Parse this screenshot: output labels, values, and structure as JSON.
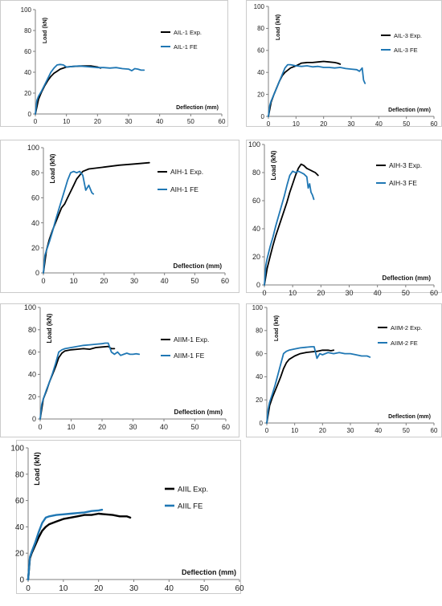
{
  "colors": {
    "exp": "#000000",
    "fe": "#1f77b4",
    "axis": "#7f7f7f",
    "border": "#bfbfbf"
  },
  "chart_data": [
    {
      "type": "line",
      "xlabel": "Deflection (mm)",
      "ylabel": "Load (kN)",
      "xlim": [
        0,
        60
      ],
      "ylim": [
        0,
        100
      ],
      "xticks": [
        "0",
        "10",
        "20",
        "30",
        "40",
        "50",
        "60"
      ],
      "yticks": [
        "0",
        "20",
        "40",
        "60",
        "80",
        "100"
      ],
      "grid": false,
      "legend_position": "top-right",
      "series": [
        {
          "name": "AIL-1 Exp.",
          "color_key": "exp",
          "x": [
            0,
            1,
            2,
            3,
            4,
            5,
            6,
            7,
            8,
            10,
            12,
            15,
            18,
            20,
            21
          ],
          "y": [
            0,
            14,
            21,
            27,
            32,
            36,
            39,
            41,
            43,
            45,
            45.5,
            46,
            46,
            45,
            44
          ]
        },
        {
          "name": "AIL-1 FE",
          "color_key": "fe",
          "x": [
            0,
            0.5,
            1,
            2,
            3,
            4,
            5,
            6,
            7,
            8,
            9,
            10,
            12,
            14,
            16,
            18,
            20,
            22,
            24,
            26,
            28,
            30,
            31,
            32,
            33,
            34,
            35
          ],
          "y": [
            0,
            13,
            17,
            22,
            28,
            34,
            40,
            44,
            47,
            47.5,
            47,
            45,
            45.5,
            46,
            45.5,
            45,
            44.5,
            44.5,
            44,
            44.5,
            43.5,
            43,
            41.5,
            43.5,
            43,
            42,
            42
          ]
        }
      ]
    },
    {
      "type": "line",
      "xlabel": "Deflection (mm)",
      "ylabel": "Load (kN)",
      "xlim": [
        0,
        60
      ],
      "ylim": [
        0,
        100
      ],
      "xticks": [
        "0",
        "10",
        "20",
        "30",
        "40",
        "50",
        "60"
      ],
      "yticks": [
        "0",
        "20",
        "40",
        "60",
        "80",
        "100"
      ],
      "grid": false,
      "legend_position": "top-right",
      "series": [
        {
          "name": "AIL-3 Exp.",
          "color_key": "exp",
          "x": [
            0,
            1,
            2,
            3,
            4,
            5,
            6,
            8,
            10,
            12,
            14,
            16,
            18,
            20,
            22,
            24,
            25,
            26
          ],
          "y": [
            0,
            13,
            20,
            26,
            32,
            37,
            40,
            44,
            46,
            48.5,
            49,
            49,
            49.5,
            50,
            49.5,
            49,
            48.5,
            47.5
          ]
        },
        {
          "name": "AIL-3 FE",
          "color_key": "fe",
          "x": [
            0,
            0.5,
            1,
            2,
            3,
            4,
            5,
            6,
            7,
            8,
            10,
            12,
            14,
            16,
            18,
            20,
            22,
            24,
            26,
            28,
            30,
            32,
            33,
            34,
            34.5,
            35
          ],
          "y": [
            0,
            10,
            14,
            20,
            26,
            32,
            38,
            44,
            47,
            47,
            46,
            45.5,
            46,
            45,
            45.5,
            44.5,
            44.5,
            44,
            44.5,
            43.5,
            43,
            42.5,
            41,
            44,
            33,
            30
          ]
        }
      ]
    },
    {
      "type": "line",
      "xlabel": "Deflection (mm)",
      "ylabel": "Load (kN)",
      "xlim": [
        0,
        60
      ],
      "ylim": [
        0,
        100
      ],
      "xticks": [
        "0",
        "10",
        "20",
        "30",
        "40",
        "50",
        "60"
      ],
      "yticks": [
        "0",
        "20",
        "40",
        "60",
        "80",
        "100"
      ],
      "grid": false,
      "legend_position": "right",
      "series": [
        {
          "name": "AIH-1 Exp.",
          "color_key": "exp",
          "x": [
            0,
            1,
            2,
            3,
            4,
            5,
            6,
            7,
            8,
            9,
            10,
            11,
            12,
            13,
            14,
            15,
            20,
            25,
            30,
            35
          ],
          "y": [
            0,
            18,
            27,
            34,
            40,
            46,
            52,
            55,
            60,
            65,
            70,
            75,
            78,
            81,
            82,
            83,
            84.5,
            86,
            87,
            88
          ]
        },
        {
          "name": "AIH-1 FE",
          "color_key": "fe",
          "x": [
            0,
            0.5,
            1,
            2,
            3,
            4,
            5,
            6,
            7,
            8,
            9,
            10,
            11,
            12,
            13,
            14,
            15,
            15.5,
            16,
            16.5
          ],
          "y": [
            0,
            14,
            18,
            25,
            33,
            42,
            50,
            58,
            66,
            74,
            80,
            81,
            80,
            81,
            78,
            66,
            70,
            67,
            64,
            63
          ]
        }
      ]
    },
    {
      "type": "line",
      "xlabel": "Deflection (mm)",
      "ylabel": "Load (kN)",
      "xlim": [
        0,
        60
      ],
      "ylim": [
        0,
        100
      ],
      "xticks": [
        "0",
        "10",
        "20",
        "30",
        "40",
        "50",
        "60"
      ],
      "yticks": [
        "0",
        "20",
        "40",
        "60",
        "80",
        "100"
      ],
      "grid": false,
      "legend_position": "top-right",
      "series": [
        {
          "name": "AIH-3 Exp.",
          "color_key": "exp",
          "x": [
            0,
            1,
            2,
            3,
            4,
            5,
            6,
            7,
            8,
            9,
            10,
            11,
            12,
            13,
            14,
            15,
            16,
            17,
            18,
            19
          ],
          "y": [
            0,
            12,
            20,
            28,
            35,
            41,
            47,
            53,
            59,
            66,
            72,
            78,
            83,
            86,
            85,
            83,
            82,
            81,
            80,
            78
          ]
        },
        {
          "name": "AIH-3 FE",
          "color_key": "fe",
          "x": [
            0,
            0.5,
            1,
            2,
            3,
            4,
            5,
            6,
            7,
            8,
            9,
            10,
            11,
            12,
            13,
            14,
            15,
            15.5,
            16,
            16.5,
            17,
            17.5
          ],
          "y": [
            0,
            14,
            19,
            27,
            34,
            42,
            49,
            56,
            63,
            71,
            78,
            81,
            80,
            81,
            80,
            79,
            77,
            69,
            72,
            66,
            64,
            61
          ]
        }
      ]
    },
    {
      "type": "line",
      "xlabel": "Deflection (mm)",
      "ylabel": "Load (kN)",
      "xlim": [
        0,
        60
      ],
      "ylim": [
        0,
        100
      ],
      "xticks": [
        "0",
        "10",
        "20",
        "30",
        "40",
        "50",
        "60"
      ],
      "yticks": [
        "0",
        "20",
        "40",
        "60",
        "80",
        "100"
      ],
      "grid": false,
      "legend_position": "top-right",
      "series": [
        {
          "name": "AIIM-1 Exp.",
          "color_key": "exp",
          "x": [
            0,
            1,
            2,
            3,
            4,
            5,
            6,
            7,
            8,
            10,
            12,
            14,
            16,
            18,
            20,
            22,
            23,
            24
          ],
          "y": [
            0,
            18,
            25,
            33,
            40,
            47,
            55,
            59,
            61,
            62,
            62.5,
            63,
            62.5,
            64,
            64.5,
            65,
            63,
            63
          ]
        },
        {
          "name": "AIIM-1 FE",
          "color_key": "fe",
          "x": [
            0,
            0.5,
            1,
            2,
            3,
            4,
            5,
            6,
            7,
            8,
            10,
            12,
            14,
            16,
            18,
            20,
            21,
            22,
            23,
            24,
            25,
            26,
            27,
            28,
            29,
            30,
            31,
            32
          ],
          "y": [
            0,
            13,
            18,
            26,
            33,
            41,
            50,
            60,
            62,
            63,
            64,
            65,
            66,
            66.5,
            67,
            67.5,
            68,
            68,
            60,
            58,
            60,
            57,
            58,
            59,
            58,
            58,
            58.5,
            58
          ]
        }
      ]
    },
    {
      "type": "line",
      "xlabel": "Deflection (mm)",
      "ylabel": "Load (kN)",
      "xlim": [
        0,
        60
      ],
      "ylim": [
        0,
        100
      ],
      "xticks": [
        "0",
        "10",
        "20",
        "30",
        "40",
        "50",
        "60"
      ],
      "yticks": [
        "0",
        "20",
        "40",
        "60",
        "80",
        "100"
      ],
      "grid": false,
      "legend_position": "top-right",
      "series": [
        {
          "name": "AIIM-2 Exp.",
          "color_key": "exp",
          "x": [
            0,
            1,
            2,
            3,
            4,
            5,
            6,
            7,
            8,
            10,
            12,
            14,
            16,
            18,
            20,
            22,
            23,
            24
          ],
          "y": [
            0,
            15,
            22,
            28,
            34,
            40,
            47,
            52,
            55,
            58,
            60,
            61,
            61.5,
            62,
            63,
            63,
            62.5,
            63
          ]
        },
        {
          "name": "AIIM-2 FE",
          "color_key": "fe",
          "x": [
            0,
            0.5,
            1,
            2,
            3,
            4,
            5,
            6,
            7,
            8,
            10,
            12,
            14,
            16,
            17,
            18,
            19,
            20,
            22,
            24,
            26,
            28,
            30,
            32,
            34,
            36,
            37
          ],
          "y": [
            0,
            12,
            18,
            25,
            33,
            42,
            51,
            60,
            62,
            63,
            64,
            65,
            65.5,
            66,
            66,
            56,
            60,
            59,
            61,
            60,
            61,
            60,
            60,
            59,
            58,
            58,
            57
          ]
        }
      ]
    },
    {
      "type": "line",
      "xlabel": "Deflection (mm)",
      "ylabel": "Load (kN)",
      "xlim": [
        0,
        60
      ],
      "ylim": [
        0,
        100
      ],
      "xticks": [
        "0",
        "10",
        "20",
        "30",
        "40",
        "50",
        "60"
      ],
      "yticks": [
        "0",
        "20",
        "40",
        "60",
        "80",
        "100"
      ],
      "grid": false,
      "legend_position": "top-right",
      "series": [
        {
          "name": "AIIL Exp.",
          "color_key": "exp",
          "x": [
            0,
            0.5,
            1,
            2,
            3,
            4,
            5,
            6,
            8,
            10,
            12,
            14,
            16,
            18,
            20,
            22,
            24,
            26,
            28,
            29
          ],
          "y": [
            0,
            16,
            20,
            26,
            32,
            37,
            40,
            42,
            44,
            46,
            47,
            48,
            49,
            49,
            50,
            49.5,
            49,
            48,
            48,
            47
          ]
        },
        {
          "name": "AIIL FE",
          "color_key": "fe",
          "x": [
            0,
            0.5,
            1,
            2,
            3,
            4,
            5,
            6,
            8,
            10,
            12,
            14,
            16,
            18,
            20,
            21
          ],
          "y": [
            0,
            17,
            21,
            28,
            36,
            43,
            47,
            48,
            49,
            49.5,
            50,
            50.5,
            51,
            52,
            52.5,
            53
          ]
        }
      ]
    }
  ]
}
